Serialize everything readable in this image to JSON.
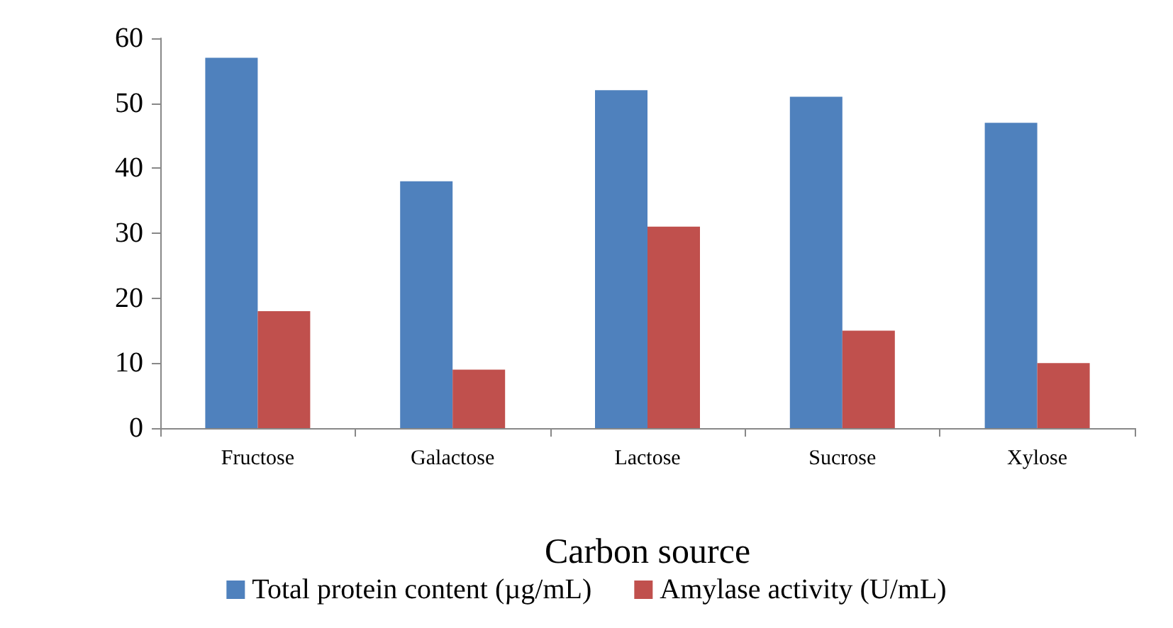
{
  "chart_data": {
    "type": "bar",
    "xlabel": "Carbon source",
    "categories": [
      "Fructose",
      "Galactose",
      "Lactose",
      "Sucrose",
      "Xylose"
    ],
    "series": [
      {
        "name": "Total protein content (µg/mL)",
        "color": "#4f81bd",
        "values": [
          57,
          38,
          52,
          51,
          47
        ]
      },
      {
        "name": "Amylase activity (U/mL)",
        "color": "#c0504d",
        "values": [
          18,
          9,
          31,
          15,
          10
        ]
      }
    ],
    "ylim": [
      0,
      60
    ],
    "yticks": [
      0,
      10,
      20,
      30,
      40,
      50,
      60
    ],
    "grid": false,
    "legend": "bottom"
  }
}
